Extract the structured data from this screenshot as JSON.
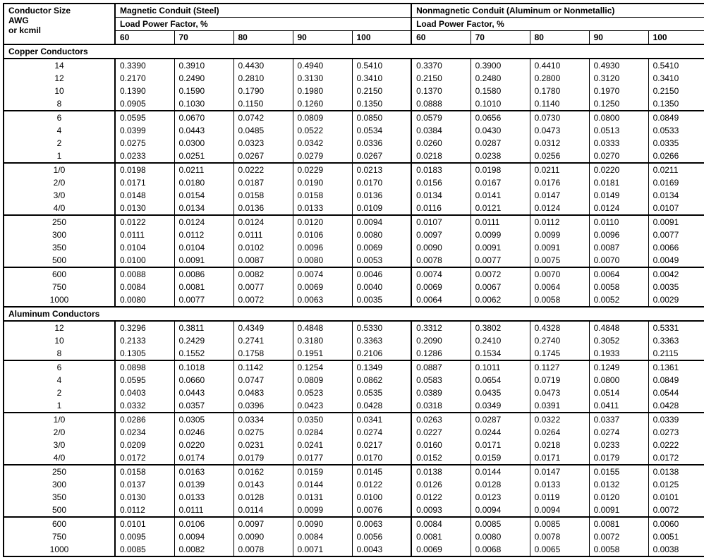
{
  "headers": {
    "conductor": "Conductor Size\nAWG\nor kcmil",
    "magnetic": "Magnetic Conduit (Steel)",
    "nonmagnetic": "Nonmagnetic Conduit (Aluminum or Nonmetallic)",
    "loadpf": "Load Power Factor, %",
    "pf": [
      "60",
      "70",
      "80",
      "90",
      "100"
    ]
  },
  "sections": [
    {
      "title": "Copper Conductors",
      "groups": [
        {
          "rows": [
            {
              "size": "14",
              "m": [
                "0.3390",
                "0.3910",
                "0.4430",
                "0.4940",
                "0.5410"
              ],
              "n": [
                "0.3370",
                "0.3900",
                "0.4410",
                "0.4930",
                "0.5410"
              ]
            },
            {
              "size": "12",
              "m": [
                "0.2170",
                "0.2490",
                "0.2810",
                "0.3130",
                "0.3410"
              ],
              "n": [
                "0.2150",
                "0.2480",
                "0.2800",
                "0.3120",
                "0.3410"
              ]
            },
            {
              "size": "10",
              "m": [
                "0.1390",
                "0.1590",
                "0.1790",
                "0.1980",
                "0.2150"
              ],
              "n": [
                "0.1370",
                "0.1580",
                "0.1780",
                "0.1970",
                "0.2150"
              ]
            },
            {
              "size": "8",
              "m": [
                "0.0905",
                "0.1030",
                "0.1150",
                "0.1260",
                "0.1350"
              ],
              "n": [
                "0.0888",
                "0.1010",
                "0.1140",
                "0.1250",
                "0.1350"
              ]
            }
          ]
        },
        {
          "rows": [
            {
              "size": "6",
              "m": [
                "0.0595",
                "0.0670",
                "0.0742",
                "0.0809",
                "0.0850"
              ],
              "n": [
                "0.0579",
                "0.0656",
                "0.0730",
                "0.0800",
                "0.0849"
              ]
            },
            {
              "size": "4",
              "m": [
                "0.0399",
                "0.0443",
                "0.0485",
                "0.0522",
                "0.0534"
              ],
              "n": [
                "0.0384",
                "0.0430",
                "0.0473",
                "0.0513",
                "0.0533"
              ]
            },
            {
              "size": "2",
              "m": [
                "0.0275",
                "0.0300",
                "0.0323",
                "0.0342",
                "0.0336"
              ],
              "n": [
                "0.0260",
                "0.0287",
                "0.0312",
                "0.0333",
                "0.0335"
              ]
            },
            {
              "size": "1",
              "m": [
                "0.0233",
                "0.0251",
                "0.0267",
                "0.0279",
                "0.0267"
              ],
              "n": [
                "0.0218",
                "0.0238",
                "0.0256",
                "0.0270",
                "0.0266"
              ]
            }
          ]
        },
        {
          "rows": [
            {
              "size": "1/0",
              "m": [
                "0.0198",
                "0.0211",
                "0.0222",
                "0.0229",
                "0.0213"
              ],
              "n": [
                "0.0183",
                "0.0198",
                "0.0211",
                "0.0220",
                "0.0211"
              ]
            },
            {
              "size": "2/0",
              "m": [
                "0.0171",
                "0.0180",
                "0.0187",
                "0.0190",
                "0.0170"
              ],
              "n": [
                "0.0156",
                "0.0167",
                "0.0176",
                "0.0181",
                "0.0169"
              ]
            },
            {
              "size": "3/0",
              "m": [
                "0.0148",
                "0.0154",
                "0.0158",
                "0.0158",
                "0.0136"
              ],
              "n": [
                "0.0134",
                "0.0141",
                "0.0147",
                "0.0149",
                "0.0134"
              ]
            },
            {
              "size": "4/0",
              "m": [
                "0.0130",
                "0.0134",
                "0.0136",
                "0.0133",
                "0.0109"
              ],
              "n": [
                "0.0116",
                "0.0121",
                "0.0124",
                "0.0124",
                "0.0107"
              ]
            }
          ]
        },
        {
          "rows": [
            {
              "size": "250",
              "m": [
                "0.0122",
                "0.0124",
                "0.0124",
                "0.0120",
                "0.0094"
              ],
              "n": [
                "0.0107",
                "0.0111",
                "0.0112",
                "0.0110",
                "0.0091"
              ]
            },
            {
              "size": "300",
              "m": [
                "0.0111",
                "0.0112",
                "0.0111",
                "0.0106",
                "0.0080"
              ],
              "n": [
                "0.0097",
                "0.0099",
                "0.0099",
                "0.0096",
                "0.0077"
              ]
            },
            {
              "size": "350",
              "m": [
                "0.0104",
                "0.0104",
                "0.0102",
                "0.0096",
                "0.0069"
              ],
              "n": [
                "0.0090",
                "0.0091",
                "0.0091",
                "0.0087",
                "0.0066"
              ]
            },
            {
              "size": "500",
              "m": [
                "0.0100",
                "0.0091",
                "0.0087",
                "0.0080",
                "0.0053"
              ],
              "n": [
                "0.0078",
                "0.0077",
                "0.0075",
                "0.0070",
                "0.0049"
              ]
            }
          ]
        },
        {
          "rows": [
            {
              "size": "600",
              "m": [
                "0.0088",
                "0.0086",
                "0.0082",
                "0.0074",
                "0.0046"
              ],
              "n": [
                "0.0074",
                "0.0072",
                "0.0070",
                "0.0064",
                "0.0042"
              ]
            },
            {
              "size": "750",
              "m": [
                "0.0084",
                "0.0081",
                "0.0077",
                "0.0069",
                "0.0040"
              ],
              "n": [
                "0.0069",
                "0.0067",
                "0.0064",
                "0.0058",
                "0.0035"
              ]
            },
            {
              "size": "1000",
              "m": [
                "0.0080",
                "0.0077",
                "0.0072",
                "0.0063",
                "0.0035"
              ],
              "n": [
                "0.0064",
                "0.0062",
                "0.0058",
                "0.0052",
                "0.0029"
              ]
            }
          ]
        }
      ]
    },
    {
      "title": "Aluminum Conductors",
      "groups": [
        {
          "rows": [
            {
              "size": "12",
              "m": [
                "0.3296",
                "0.3811",
                "0.4349",
                "0.4848",
                "0.5330"
              ],
              "n": [
                "0.3312",
                "0.3802",
                "0.4328",
                "0.4848",
                "0.5331"
              ]
            },
            {
              "size": "10",
              "m": [
                "0.2133",
                "0.2429",
                "0.2741",
                "0.3180",
                "0.3363"
              ],
              "n": [
                "0.2090",
                "0.2410",
                "0.2740",
                "0.3052",
                "0.3363"
              ]
            },
            {
              "size": "8",
              "m": [
                "0.1305",
                "0.1552",
                "0.1758",
                "0.1951",
                "0.2106"
              ],
              "n": [
                "0.1286",
                "0.1534",
                "0.1745",
                "0.1933",
                "0.2115"
              ]
            }
          ]
        },
        {
          "rows": [
            {
              "size": "6",
              "m": [
                "0.0898",
                "0.1018",
                "0.1142",
                "0.1254",
                "0.1349"
              ],
              "n": [
                "0.0887",
                "0.1011",
                "0.1127",
                "0.1249",
                "0.1361"
              ]
            },
            {
              "size": "4",
              "m": [
                "0.0595",
                "0.0660",
                "0.0747",
                "0.0809",
                "0.0862"
              ],
              "n": [
                "0.0583",
                "0.0654",
                "0.0719",
                "0.0800",
                "0.0849"
              ]
            },
            {
              "size": "2",
              "m": [
                "0.0403",
                "0.0443",
                "0.0483",
                "0.0523",
                "0.0535"
              ],
              "n": [
                "0.0389",
                "0.0435",
                "0.0473",
                "0.0514",
                "0.0544"
              ]
            },
            {
              "size": "1",
              "m": [
                "0.0332",
                "0.0357",
                "0.0396",
                "0.0423",
                "0.0428"
              ],
              "n": [
                "0.0318",
                "0.0349",
                "0.0391",
                "0.0411",
                "0.0428"
              ]
            }
          ]
        },
        {
          "rows": [
            {
              "size": "1/0",
              "m": [
                "0.0286",
                "0.0305",
                "0.0334",
                "0.0350",
                "0.0341"
              ],
              "n": [
                "0.0263",
                "0.0287",
                "0.0322",
                "0.0337",
                "0.0339"
              ]
            },
            {
              "size": "2/0",
              "m": [
                "0.0234",
                "0.0246",
                "0.0275",
                "0.0284",
                "0.0274"
              ],
              "n": [
                "0.0227",
                "0.0244",
                "0.0264",
                "0.0274",
                "0.0273"
              ]
            },
            {
              "size": "3/0",
              "m": [
                "0.0209",
                "0.0220",
                "0.0231",
                "0.0241",
                "0.0217"
              ],
              "n": [
                "0.0160",
                "0.0171",
                "0.0218",
                "0.0233",
                "0.0222"
              ]
            },
            {
              "size": "4/0",
              "m": [
                "0.0172",
                "0.0174",
                "0.0179",
                "0.0177",
                "0.0170"
              ],
              "n": [
                "0.0152",
                "0.0159",
                "0.0171",
                "0.0179",
                "0.0172"
              ]
            }
          ]
        },
        {
          "rows": [
            {
              "size": "250",
              "m": [
                "0.0158",
                "0.0163",
                "0.0162",
                "0.0159",
                "0.0145"
              ],
              "n": [
                "0.0138",
                "0.0144",
                "0.0147",
                "0.0155",
                "0.0138"
              ]
            },
            {
              "size": "300",
              "m": [
                "0.0137",
                "0.0139",
                "0.0143",
                "0.0144",
                "0.0122"
              ],
              "n": [
                "0.0126",
                "0.0128",
                "0.0133",
                "0.0132",
                "0.0125"
              ]
            },
            {
              "size": "350",
              "m": [
                "0.0130",
                "0.0133",
                "0.0128",
                "0.0131",
                "0.0100"
              ],
              "n": [
                "0.0122",
                "0.0123",
                "0.0119",
                "0.0120",
                "0.0101"
              ]
            },
            {
              "size": "500",
              "m": [
                "0.0112",
                "0.0111",
                "0.0114",
                "0.0099",
                "0.0076"
              ],
              "n": [
                "0.0093",
                "0.0094",
                "0.0094",
                "0.0091",
                "0.0072"
              ]
            }
          ]
        },
        {
          "rows": [
            {
              "size": "600",
              "m": [
                "0.0101",
                "0.0106",
                "0.0097",
                "0.0090",
                "0.0063"
              ],
              "n": [
                "0.0084",
                "0.0085",
                "0.0085",
                "0.0081",
                "0.0060"
              ]
            },
            {
              "size": "750",
              "m": [
                "0.0095",
                "0.0094",
                "0.0090",
                "0.0084",
                "0.0056"
              ],
              "n": [
                "0.0081",
                "0.0080",
                "0.0078",
                "0.0072",
                "0.0051"
              ]
            },
            {
              "size": "1000",
              "m": [
                "0.0085",
                "0.0082",
                "0.0078",
                "0.0071",
                "0.0043"
              ],
              "n": [
                "0.0069",
                "0.0068",
                "0.0065",
                "0.0058",
                "0.0038"
              ]
            }
          ]
        }
      ]
    }
  ]
}
